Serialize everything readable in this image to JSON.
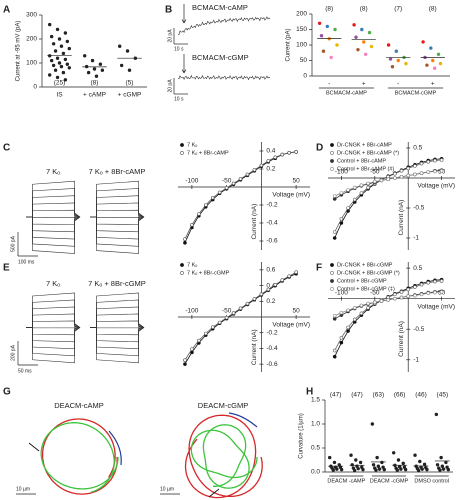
{
  "chart_data": [
    {
      "type": "dot",
      "panel": "A",
      "ylabel": "Current at -95 mV (pA)",
      "categories": [
        "IS",
        "+ cAMP",
        "+ cGMP"
      ],
      "n_labels": [
        "(25)",
        "(8)",
        "(5)"
      ],
      "n_labels_at": "bottom",
      "color": "#222",
      "values": [
        [
          260,
          240,
          225,
          210,
          200,
          190,
          180,
          170,
          160,
          150,
          140,
          130,
          120,
          115,
          110,
          100,
          95,
          90,
          85,
          80,
          70,
          60,
          50,
          40,
          30
        ],
        [
          130,
          110,
          95,
          85,
          75,
          70,
          60,
          45
        ],
        [
          170,
          150,
          120,
          90,
          70
        ]
      ],
      "means": [
        132,
        84,
        120
      ],
      "ylim": [
        0,
        300
      ],
      "yticks": [
        0,
        100,
        200,
        300
      ]
    },
    {
      "type": "trace",
      "panel": "B",
      "title": "BCMACM-cAMP",
      "scale_labels": [
        "20 pA",
        "10 s"
      ],
      "shape": "rise"
    },
    {
      "type": "trace",
      "title": "BCMACM-cGMP",
      "scale_labels": [
        "20 pA",
        "10 s"
      ],
      "shape": "flat"
    },
    {
      "type": "dot",
      "ylabel": "Current (pA)",
      "categories": [
        "-",
        "+",
        "-",
        "+"
      ],
      "groups": [
        "BCMACM-cAMP",
        "BCMACM-cGMP"
      ],
      "n_labels": [
        "(8)",
        "(8)",
        "(7)",
        "(8)"
      ],
      "n_labels_at": "top",
      "point_colors": [
        "#e41a1c",
        "#377eb8",
        "#4daf4a",
        "#984ea3",
        "#ff7f00",
        "#e6b800",
        "#a65628",
        "#f781bf"
      ],
      "values": [
        [
          170,
          160,
          150,
          130,
          120,
          100,
          80,
          60
        ],
        [
          165,
          150,
          140,
          125,
          110,
          95,
          85,
          70
        ],
        [
          100,
          80,
          60,
          55,
          50,
          40,
          30
        ],
        [
          110,
          90,
          70,
          60,
          50,
          40,
          35,
          25
        ]
      ],
      "means": [
        121,
        117.5,
        59,
        60
      ],
      "ylim": [
        0,
        200
      ],
      "yticks": [
        0,
        50,
        100,
        150,
        200
      ]
    },
    {
      "type": "traces",
      "panel": "C",
      "labels": [
        "7 Kₒ",
        "7 Kₒ + 8Br-cAMP"
      ],
      "scale_labels": [
        "500 pA",
        "100 ms"
      ]
    },
    {
      "type": "line",
      "xlabel": "Voltage (mV)",
      "ylabel": "Current (nA)",
      "legend": "upper left",
      "x": [
        -110,
        -100,
        -90,
        -80,
        -70,
        -60,
        -50,
        -40,
        -30,
        -20,
        -10,
        0,
        10,
        20,
        30,
        40,
        50
      ],
      "series": [
        {
          "name": "7 Kₒ",
          "color": "#111",
          "filled": true,
          "values": [
            -0.62,
            -0.45,
            -0.32,
            -0.22,
            -0.14,
            -0.07,
            -0.02,
            0.03,
            0.08,
            0.13,
            0.18,
            0.23,
            0.28,
            0.32,
            0.36,
            0.38,
            0.39
          ]
        },
        {
          "name": "7 Kₒ + 8Br-cAMP",
          "color": "#555",
          "filled": false,
          "values": [
            -0.58,
            -0.42,
            -0.3,
            -0.2,
            -0.12,
            -0.06,
            -0.01,
            0.04,
            0.09,
            0.14,
            0.19,
            0.24,
            0.29,
            0.33,
            0.36,
            0.38,
            0.39
          ]
        }
      ],
      "xlim": [
        -120,
        70
      ],
      "ylim": [
        -0.7,
        0.5
      ],
      "xticks": [
        -100,
        -50,
        50
      ],
      "yticks": [
        -0.6,
        -0.4,
        -0.2,
        0.2,
        0.4
      ]
    },
    {
      "type": "line",
      "panel": "D",
      "xlabel": "Voltage (mV)",
      "ylabel": "Current (nA)",
      "legend": "upper left",
      "x": [
        -110,
        -100,
        -90,
        -80,
        -70,
        -60,
        -50,
        -40,
        -30,
        -20,
        -10,
        0,
        10,
        20,
        30,
        40,
        50
      ],
      "series": [
        {
          "name": "Dr-CNGK + 8Br-cAMP",
          "color": "#111",
          "filled": true,
          "values": [
            -1.0,
            -0.75,
            -0.55,
            -0.4,
            -0.28,
            -0.18,
            -0.1,
            -0.03,
            0.03,
            0.08,
            0.13,
            0.18,
            0.22,
            0.26,
            0.29,
            0.31,
            0.32
          ]
        },
        {
          "name": "Dr-CNGK + 8Br-cAMP (*)",
          "color": "#666",
          "filled": false,
          "values": [
            -0.9,
            -0.68,
            -0.5,
            -0.36,
            -0.25,
            -0.16,
            -0.09,
            -0.03,
            0.02,
            0.07,
            0.12,
            0.16,
            0.2,
            0.24,
            0.27,
            0.29,
            0.3
          ]
        },
        {
          "name": "Control + 8Br-cAMP",
          "color": "#333",
          "filled": true,
          "values": [
            -0.35,
            -0.28,
            -0.22,
            -0.17,
            -0.13,
            -0.1,
            -0.07,
            -0.04,
            -0.02,
            0,
            0.02,
            0.04,
            0.06,
            0.08,
            0.1,
            0.12,
            0.13
          ]
        },
        {
          "name": "Control + 8Br-cAMP (#)",
          "color": "#888",
          "filled": false,
          "values": [
            -0.3,
            -0.25,
            -0.2,
            -0.16,
            -0.12,
            -0.09,
            -0.06,
            -0.04,
            -0.02,
            0,
            0.02,
            0.04,
            0.06,
            0.08,
            0.1,
            0.11,
            0.12
          ]
        }
      ],
      "xlim": [
        -120,
        70
      ],
      "ylim": [
        -1.2,
        0.6
      ],
      "xticks": [
        -100,
        -50,
        50
      ],
      "yticks": [
        -1,
        -0.5,
        0.5
      ]
    },
    {
      "type": "traces",
      "panel": "E",
      "labels": [
        "7 Kₒ",
        "7 Kₒ + 8Br-cGMP"
      ],
      "scale_labels": [
        "200 pA",
        "50 ms"
      ]
    },
    {
      "type": "line",
      "xlabel": "Voltage (mV)",
      "ylabel": "Current (nA)",
      "legend": "upper left",
      "x": [
        -110,
        -100,
        -90,
        -80,
        -70,
        -60,
        -50,
        -40,
        -30,
        -20,
        -10,
        0,
        10,
        20,
        30,
        40,
        50
      ],
      "series": [
        {
          "name": "7 Kₒ",
          "color": "#111",
          "filled": true,
          "values": [
            -0.6,
            -0.45,
            -0.33,
            -0.23,
            -0.15,
            -0.08,
            -0.02,
            0.04,
            0.1,
            0.16,
            0.22,
            0.28,
            0.34,
            0.4,
            0.46,
            0.51,
            0.55
          ]
        },
        {
          "name": "7 Kₒ + 8Br-cGMP",
          "color": "#555",
          "filled": false,
          "values": [
            -0.55,
            -0.41,
            -0.3,
            -0.21,
            -0.13,
            -0.07,
            -0.01,
            0.05,
            0.11,
            0.17,
            0.23,
            0.29,
            0.35,
            0.41,
            0.47,
            0.52,
            0.57
          ]
        }
      ],
      "xlim": [
        -120,
        70
      ],
      "ylim": [
        -0.7,
        0.7
      ],
      "xticks": [
        -100,
        -50,
        50
      ],
      "yticks": [
        -0.6,
        -0.4,
        -0.2,
        0.2,
        0.4,
        0.6
      ]
    },
    {
      "type": "line",
      "panel": "F",
      "xlabel": "Voltage (mV)",
      "ylabel": "Current (nA)",
      "legend": "upper left",
      "x": [
        -110,
        -100,
        -90,
        -80,
        -70,
        -60,
        -50,
        -40,
        -30,
        -20,
        -10,
        0,
        10,
        20,
        30,
        40,
        50
      ],
      "series": [
        {
          "name": "Dr-CNGK + 8Br-cGMP",
          "color": "#111",
          "filled": true,
          "values": [
            -0.95,
            -0.72,
            -0.53,
            -0.38,
            -0.27,
            -0.17,
            -0.09,
            -0.03,
            0.03,
            0.08,
            0.12,
            0.17,
            0.21,
            0.25,
            0.28,
            0.3,
            0.31
          ]
        },
        {
          "name": "Dr-CNGK + 8Br-cGMP (*)",
          "color": "#666",
          "filled": false,
          "values": [
            -0.85,
            -0.64,
            -0.47,
            -0.34,
            -0.24,
            -0.15,
            -0.08,
            -0.02,
            0.02,
            0.07,
            0.11,
            0.15,
            0.19,
            0.23,
            0.26,
            0.28,
            0.29
          ]
        },
        {
          "name": "Control + 8Br-cGMP",
          "color": "#333",
          "filled": true,
          "values": [
            -0.33,
            -0.27,
            -0.21,
            -0.16,
            -0.12,
            -0.09,
            -0.06,
            -0.04,
            -0.02,
            0,
            0.02,
            0.04,
            0.06,
            0.08,
            0.1,
            0.11,
            0.12
          ]
        },
        {
          "name": "Control + 8Br-cGMP (‡)",
          "color": "#888",
          "filled": false,
          "values": [
            -0.28,
            -0.23,
            -0.19,
            -0.15,
            -0.11,
            -0.08,
            -0.06,
            -0.04,
            -0.02,
            0,
            0.02,
            0.04,
            0.05,
            0.07,
            0.09,
            0.1,
            0.11
          ]
        }
      ],
      "xlim": [
        -120,
        70
      ],
      "ylim": [
        -1.2,
        0.6
      ],
      "xticks": [
        -100,
        -50,
        50
      ],
      "yticks": [
        -1,
        -0.5,
        0.5
      ]
    },
    {
      "type": "trajectory",
      "panel": "G",
      "title": "DEACM-cAMP",
      "scale_label": "10 µm"
    },
    {
      "type": "trajectory",
      "title": "DEACM-cGMP",
      "scale_label": "10 µm"
    },
    {
      "type": "dot",
      "panel": "H",
      "ylabel": "Curvature (1/µm)",
      "groups": [
        "DEACM -cAMP",
        "DEACM -cGMP",
        "DMSO control"
      ],
      "n_labels": [
        "(47)",
        "(47)",
        "(63)",
        "(66)",
        "(46)",
        "(45)"
      ],
      "n_labels_at": "top",
      "color": "#222",
      "values": [
        [
          0.3,
          0.2,
          0.15,
          0.12,
          0.1,
          0.1,
          0.08,
          0.06,
          0.05,
          0.04
        ],
        [
          0.35,
          0.25,
          0.2,
          0.15,
          0.12,
          0.1,
          0.08,
          0.07,
          0.05,
          0.03
        ],
        [
          1.0,
          0.3,
          0.2,
          0.15,
          0.12,
          0.1,
          0.08,
          0.06,
          0.05,
          0.04
        ],
        [
          0.4,
          0.25,
          0.18,
          0.14,
          0.11,
          0.1,
          0.08,
          0.06,
          0.05,
          0.04
        ],
        [
          0.35,
          0.22,
          0.16,
          0.12,
          0.1,
          0.09,
          0.07,
          0.06,
          0.05,
          0.03
        ],
        [
          1.2,
          0.3,
          0.2,
          0.15,
          0.12,
          0.1,
          0.08,
          0.06,
          0.05,
          0.04
        ]
      ],
      "means": [
        0.12,
        0.14,
        0.21,
        0.141,
        0.125,
        0.23
      ],
      "ylim": [
        0,
        1.5
      ],
      "yticks": [
        {
          "value": 0,
          "label": "0.0"
        },
        0.5,
        {
          "value": 1,
          "label": "1.0"
        },
        1.5
      ]
    }
  ]
}
